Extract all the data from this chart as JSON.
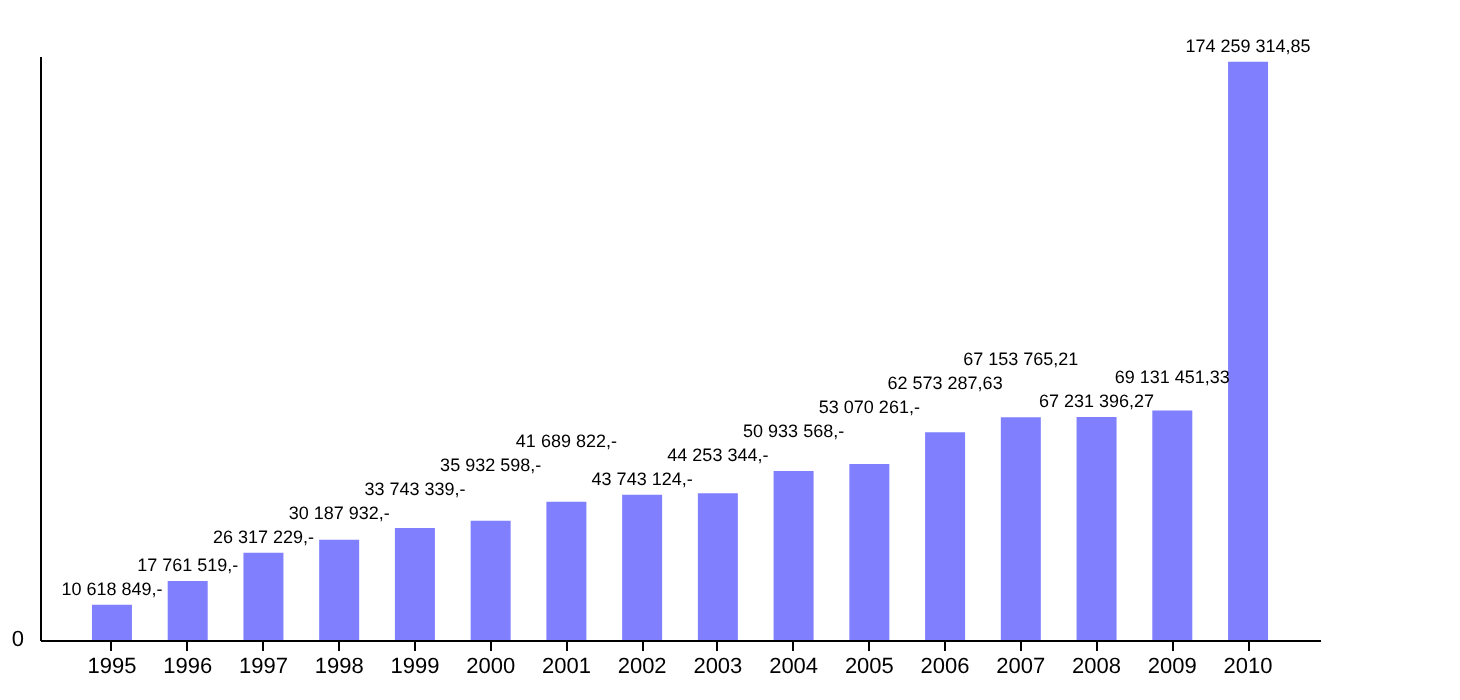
{
  "chart_data": {
    "type": "bar",
    "categories": [
      "1995",
      "1996",
      "1997",
      "1998",
      "1999",
      "2000",
      "2001",
      "2002",
      "2003",
      "2004",
      "2005",
      "2006",
      "2007",
      "2008",
      "2009",
      "2010"
    ],
    "values": [
      10618849,
      17761519,
      26317229,
      30187932,
      33743339,
      35932598,
      41689822,
      43743124,
      44253344,
      50933568,
      53070261,
      62573287.63,
      67153765.21,
      67231396.27,
      69131451.33,
      174259314.85
    ],
    "value_labels": [
      "10 618 849,-",
      "17 761 519,-",
      "26 317 229,-",
      "30 187 932,-",
      "33 743 339,-",
      "35 932 598,-",
      "41 689 822,-",
      "43 743 124,-",
      "44 253 344,-",
      "50 933 568,-",
      "53 070 261,-",
      "62 573 287,63",
      "67 153 765,21",
      "67 231 396,27",
      "69 131 451,33",
      "174 259 314,85"
    ],
    "color": "#8080ff",
    "ylim": [
      0,
      176000000
    ],
    "annotations": [
      "0"
    ],
    "grid": false
  }
}
